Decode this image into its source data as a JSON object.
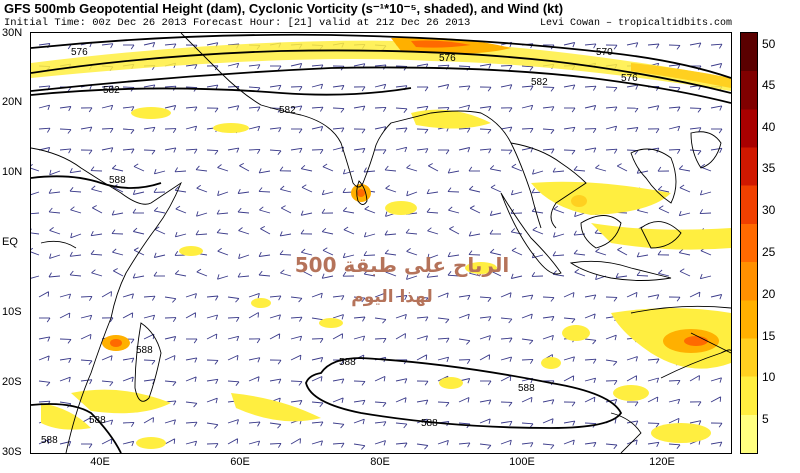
{
  "header": {
    "title": "GFS 500mb Geopotential Height (dam), Cyclonic Vorticity (s⁻¹*10⁻⁵, shaded), and Wind (kt)",
    "subtitle": "Initial Time: 00z Dec 26 2013 Forecast Hour: [21] valid at 21z Dec 26 2013",
    "credit": "Levi Cowan – tropicaltidbits.com"
  },
  "axes": {
    "lat_labels": [
      "30N",
      "20N",
      "10N",
      "EQ",
      "10S",
      "20S",
      "30S"
    ],
    "lon_labels": [
      "40E",
      "60E",
      "80E",
      "100E",
      "120E"
    ]
  },
  "colorbar": {
    "ticks": [
      "50",
      "45",
      "40",
      "35",
      "30",
      "25",
      "20",
      "15",
      "10",
      "5"
    ],
    "colors": [
      "#ffff80",
      "#ffee40",
      "#ffd020",
      "#ffb000",
      "#ff9000",
      "#ff6a00",
      "#f04000",
      "#d01800",
      "#a80000",
      "#800000",
      "#5a0000"
    ]
  },
  "contours": {
    "labels": [
      "576",
      "576",
      "570",
      "576",
      "582",
      "582",
      "582",
      "588",
      "588",
      "588",
      "588",
      "588",
      "588",
      "588"
    ]
  },
  "watermark": {
    "line1": "الرياح على طبقة 500",
    "line2": "لهذا اليوم"
  }
}
